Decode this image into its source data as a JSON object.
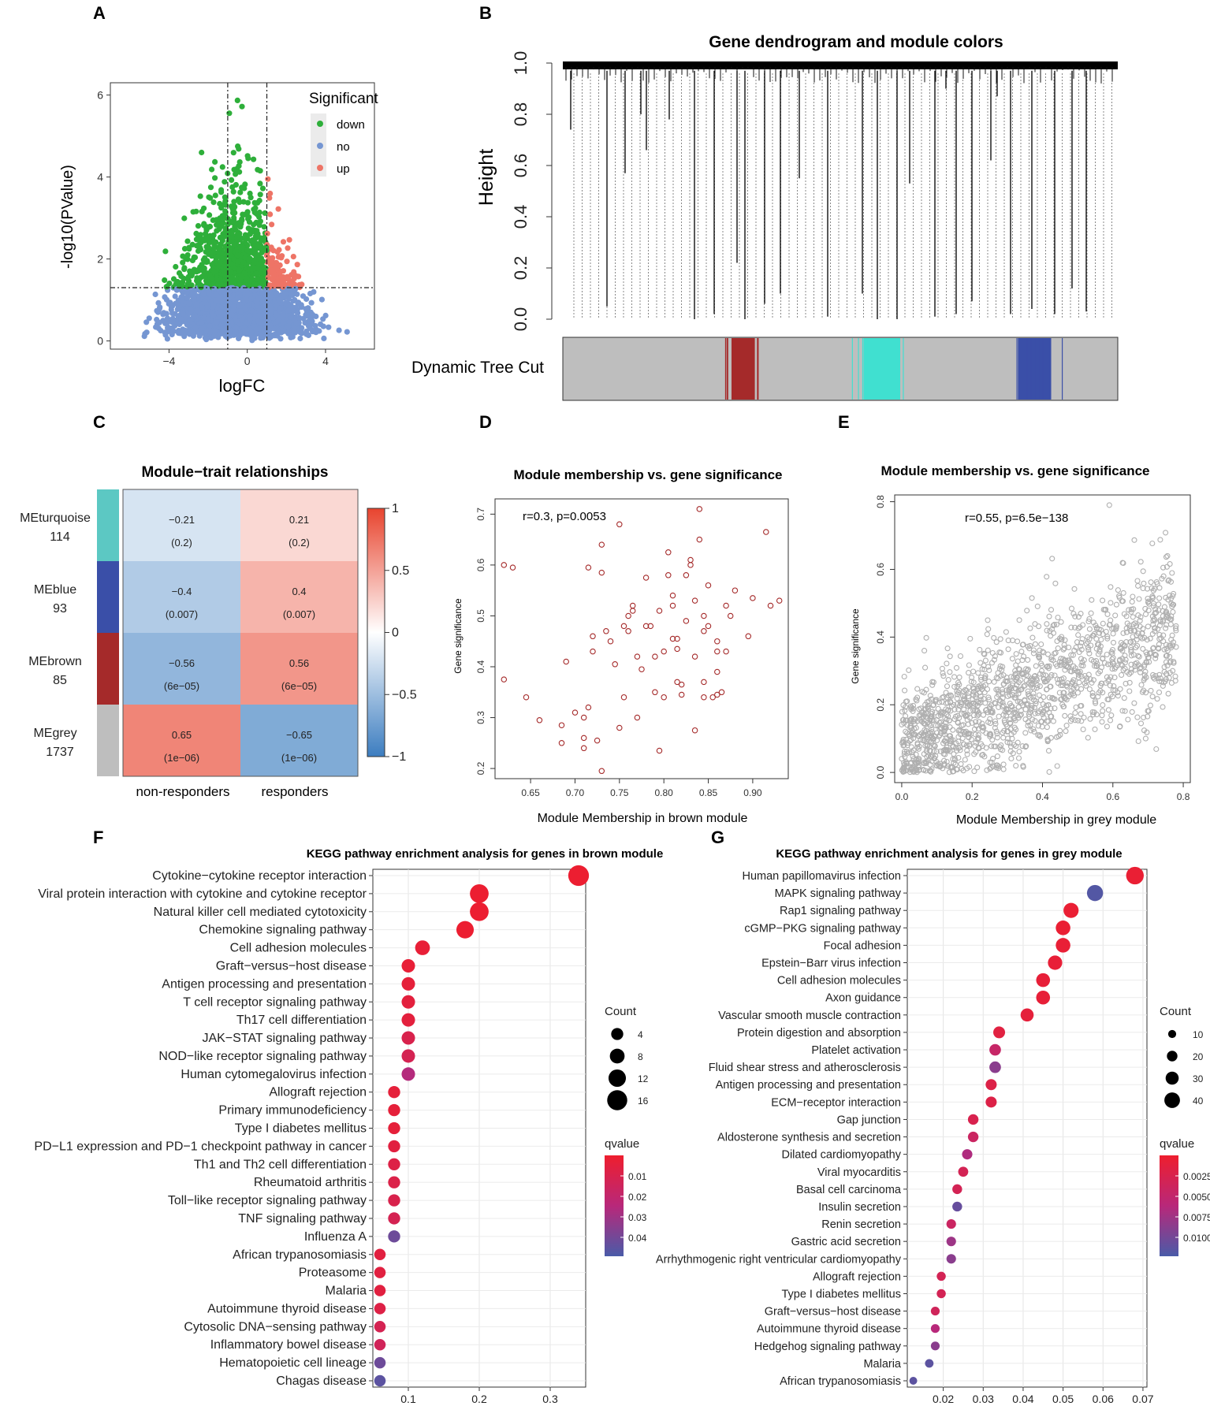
{
  "panel_labels": {
    "A": "A",
    "B": "B",
    "C": "C",
    "D": "D",
    "E": "E",
    "F": "F",
    "G": "G"
  },
  "colors": {
    "green": "#2EAF3A",
    "blue": "#7596D2",
    "red": "#EE7466",
    "grey": "#BEBEBE",
    "brown": "#A52A2A",
    "turquoise": "#40E0D0",
    "moduleblue": "#3A4FA8",
    "dark_red": "#E4232F",
    "dark_blue": "#4A5BA8"
  },
  "chart_data": [
    {
      "id": "A",
      "type": "scatter",
      "title": "",
      "xlabel": "logFC",
      "ylabel": "-log10(PValue)",
      "xlim": [
        -7,
        6.5
      ],
      "ylim": [
        -0.2,
        6.3
      ],
      "xticks": [
        -4,
        0,
        4
      ],
      "yticks": [
        0,
        2,
        4,
        6
      ],
      "legend_title": "Significant",
      "legend": [
        "down",
        "no",
        "up"
      ],
      "thresholds": {
        "logfc": [
          -1,
          1
        ],
        "pvalue_log": 1.3
      }
    },
    {
      "id": "B",
      "type": "dendrogram",
      "title": "Gene dendrogram and module colors",
      "ylabel": "Height",
      "yticks": [
        "0.0",
        "0.2",
        "0.4",
        "0.6",
        "0.8",
        "1.0"
      ],
      "ylim": [
        0,
        1
      ],
      "row_label": "Dynamic Tree Cut",
      "modules": [
        {
          "name": "brown",
          "start": 0.29,
          "end": 0.36
        },
        {
          "name": "turquoise",
          "start": 0.52,
          "end": 0.63
        },
        {
          "name": "blue",
          "start": 0.8,
          "end": 0.9
        }
      ]
    },
    {
      "id": "C",
      "type": "heatmap",
      "title": "Module−trait relationships",
      "columns": [
        "non-responders",
        "responders"
      ],
      "rows": [
        {
          "name": "MEturquoise",
          "count": "114",
          "color": "turquoise",
          "values": [
            -0.21,
            0.21
          ],
          "labels": [
            "−0.21",
            "0.21"
          ],
          "p": [
            "(0.2)",
            "(0.2)"
          ]
        },
        {
          "name": "MEblue",
          "count": "93",
          "color": "moduleblue",
          "values": [
            -0.4,
            0.4
          ],
          "labels": [
            "−0.4",
            "0.4"
          ],
          "p": [
            "(0.007)",
            "(0.007)"
          ]
        },
        {
          "name": "MEbrown",
          "count": "85",
          "color": "brown",
          "values": [
            -0.56,
            0.56
          ],
          "labels": [
            "−0.56",
            "0.56"
          ],
          "p": [
            "(6e−05)",
            "(6e−05)"
          ]
        },
        {
          "name": "MEgrey",
          "count": "1737",
          "color": "grey",
          "values": [
            0.65,
            -0.65
          ],
          "labels": [
            "0.65",
            "−0.65"
          ],
          "p": [
            "(1e−06)",
            "(1e−06)"
          ]
        }
      ],
      "colorbar_ticks": [
        "1",
        "0.5",
        "0",
        "−0.5",
        "−1"
      ]
    },
    {
      "id": "D",
      "type": "scatter",
      "title": "Module membership vs. gene significance",
      "xlabel": "Module Membership in brown module",
      "ylabel": "Gene significance",
      "annotation": "r=0.3, p=0.0053",
      "xlim": [
        0.61,
        0.94
      ],
      "ylim": [
        0.18,
        0.73
      ],
      "xticks": [
        "0.65",
        "0.70",
        "0.75",
        "0.80",
        "0.85",
        "0.90"
      ],
      "yticks": [
        "0.2",
        "0.3",
        "0.4",
        "0.5",
        "0.6",
        "0.7"
      ],
      "points": [
        [
          0.62,
          0.6
        ],
        [
          0.63,
          0.595
        ],
        [
          0.62,
          0.375
        ],
        [
          0.645,
          0.34
        ],
        [
          0.66,
          0.295
        ],
        [
          0.685,
          0.285
        ],
        [
          0.685,
          0.25
        ],
        [
          0.69,
          0.41
        ],
        [
          0.7,
          0.31
        ],
        [
          0.71,
          0.3
        ],
        [
          0.71,
          0.26
        ],
        [
          0.71,
          0.24
        ],
        [
          0.715,
          0.32
        ],
        [
          0.715,
          0.595
        ],
        [
          0.72,
          0.46
        ],
        [
          0.72,
          0.43
        ],
        [
          0.725,
          0.255
        ],
        [
          0.73,
          0.195
        ],
        [
          0.73,
          0.585
        ],
        [
          0.73,
          0.64
        ],
        [
          0.735,
          0.47
        ],
        [
          0.74,
          0.45
        ],
        [
          0.745,
          0.405
        ],
        [
          0.75,
          0.68
        ],
        [
          0.75,
          0.28
        ],
        [
          0.755,
          0.34
        ],
        [
          0.755,
          0.48
        ],
        [
          0.76,
          0.5
        ],
        [
          0.76,
          0.47
        ],
        [
          0.765,
          0.51
        ],
        [
          0.765,
          0.52
        ],
        [
          0.77,
          0.42
        ],
        [
          0.77,
          0.3
        ],
        [
          0.775,
          0.395
        ],
        [
          0.78,
          0.48
        ],
        [
          0.78,
          0.575
        ],
        [
          0.785,
          0.48
        ],
        [
          0.79,
          0.35
        ],
        [
          0.79,
          0.42
        ],
        [
          0.795,
          0.235
        ],
        [
          0.795,
          0.51
        ],
        [
          0.8,
          0.43
        ],
        [
          0.8,
          0.34
        ],
        [
          0.805,
          0.625
        ],
        [
          0.805,
          0.58
        ],
        [
          0.81,
          0.455
        ],
        [
          0.81,
          0.52
        ],
        [
          0.81,
          0.54
        ],
        [
          0.815,
          0.455
        ],
        [
          0.815,
          0.435
        ],
        [
          0.815,
          0.37
        ],
        [
          0.82,
          0.365
        ],
        [
          0.82,
          0.345
        ],
        [
          0.825,
          0.49
        ],
        [
          0.825,
          0.58
        ],
        [
          0.83,
          0.6
        ],
        [
          0.83,
          0.61
        ],
        [
          0.835,
          0.42
        ],
        [
          0.835,
          0.53
        ],
        [
          0.835,
          0.275
        ],
        [
          0.84,
          0.71
        ],
        [
          0.84,
          0.65
        ],
        [
          0.845,
          0.5
        ],
        [
          0.845,
          0.47
        ],
        [
          0.845,
          0.34
        ],
        [
          0.845,
          0.37
        ],
        [
          0.85,
          0.48
        ],
        [
          0.85,
          0.56
        ],
        [
          0.855,
          0.34
        ],
        [
          0.86,
          0.45
        ],
        [
          0.86,
          0.43
        ],
        [
          0.86,
          0.39
        ],
        [
          0.86,
          0.345
        ],
        [
          0.865,
          0.35
        ],
        [
          0.87,
          0.52
        ],
        [
          0.87,
          0.43
        ],
        [
          0.875,
          0.5
        ],
        [
          0.88,
          0.55
        ],
        [
          0.895,
          0.46
        ],
        [
          0.9,
          0.535
        ],
        [
          0.915,
          0.665
        ],
        [
          0.92,
          0.52
        ],
        [
          0.93,
          0.53
        ]
      ]
    },
    {
      "id": "E",
      "type": "scatter",
      "title": "Module membership vs. gene significance",
      "xlabel": "Module Membership in grey module",
      "ylabel": "Gene significance",
      "annotation": "r=0.55, p=6.5e−138",
      "xlim": [
        -0.02,
        0.82
      ],
      "ylim": [
        -0.03,
        0.82
      ],
      "xticks": [
        "0.0",
        "0.2",
        "0.4",
        "0.6",
        "0.8"
      ],
      "yticks": [
        "0.0",
        "0.2",
        "0.4",
        "0.6",
        "0.8"
      ],
      "trend": {
        "n": 1737,
        "slope": 0.42,
        "intercept": 0.08,
        "spread": 0.12
      }
    },
    {
      "id": "F",
      "type": "dotplot",
      "title": "KEGG pathway enrichment analysis for genes in brown module",
      "xlim": [
        0.05,
        0.35
      ],
      "xticks": [
        "0.1",
        "0.2",
        "0.3"
      ],
      "size_legend_title": "Count",
      "size_legend": [
        4,
        8,
        12,
        16
      ],
      "color_legend_title": "qvalue",
      "color_legend": [
        "0.01",
        "0.02",
        "0.03",
        "0.04"
      ],
      "qlim": [
        0.0,
        0.05
      ],
      "terms": [
        {
          "label": "Cytokine−cytokine receptor interaction",
          "x": 0.34,
          "count": 17,
          "q": 0.001
        },
        {
          "label": "Viral protein interaction with cytokine and cytokine receptor",
          "x": 0.2,
          "count": 14,
          "q": 0.001
        },
        {
          "label": "Natural killer cell mediated cytotoxicity",
          "x": 0.2,
          "count": 14,
          "q": 0.001
        },
        {
          "label": "Chemokine signaling pathway",
          "x": 0.18,
          "count": 12,
          "q": 0.001
        },
        {
          "label": "Cell adhesion molecules",
          "x": 0.12,
          "count": 8,
          "q": 0.003
        },
        {
          "label": "Graft−versus−host disease",
          "x": 0.1,
          "count": 6,
          "q": 0.003
        },
        {
          "label": "Antigen processing and presentation",
          "x": 0.1,
          "count": 6,
          "q": 0.004
        },
        {
          "label": "T cell receptor signaling pathway",
          "x": 0.1,
          "count": 6,
          "q": 0.005
        },
        {
          "label": "Th17 cell differentiation",
          "x": 0.1,
          "count": 6,
          "q": 0.005
        },
        {
          "label": "JAK−STAT signaling pathway",
          "x": 0.1,
          "count": 6,
          "q": 0.01
        },
        {
          "label": "NOD−like receptor signaling pathway",
          "x": 0.1,
          "count": 6,
          "q": 0.012
        },
        {
          "label": "Human cytomegalovirus infection",
          "x": 0.1,
          "count": 6,
          "q": 0.026
        },
        {
          "label": "Allograft rejection",
          "x": 0.08,
          "count": 4,
          "q": 0.004
        },
        {
          "label": "Primary immunodeficiency",
          "x": 0.08,
          "count": 4,
          "q": 0.004
        },
        {
          "label": "Type I diabetes mellitus",
          "x": 0.08,
          "count": 4,
          "q": 0.004
        },
        {
          "label": "PD−L1 expression and PD−1 checkpoint pathway in cancer",
          "x": 0.08,
          "count": 4,
          "q": 0.006
        },
        {
          "label": "Th1 and Th2 cell differentiation",
          "x": 0.08,
          "count": 4,
          "q": 0.008
        },
        {
          "label": "Rheumatoid arthritis",
          "x": 0.08,
          "count": 4,
          "q": 0.009
        },
        {
          "label": "Toll−like receptor signaling pathway",
          "x": 0.08,
          "count": 4,
          "q": 0.01
        },
        {
          "label": "TNF signaling pathway",
          "x": 0.08,
          "count": 4,
          "q": 0.012
        },
        {
          "label": "Influenza A",
          "x": 0.08,
          "count": 4,
          "q": 0.042
        },
        {
          "label": "African trypanosomiasis",
          "x": 0.06,
          "count": 3,
          "q": 0.006
        },
        {
          "label": "Proteasome",
          "x": 0.06,
          "count": 3,
          "q": 0.006
        },
        {
          "label": "Malaria",
          "x": 0.06,
          "count": 3,
          "q": 0.006
        },
        {
          "label": "Autoimmune thyroid disease",
          "x": 0.06,
          "count": 3,
          "q": 0.008
        },
        {
          "label": "Cytosolic DNA−sensing pathway",
          "x": 0.06,
          "count": 3,
          "q": 0.012
        },
        {
          "label": "Inflammatory bowel disease",
          "x": 0.06,
          "count": 3,
          "q": 0.014
        },
        {
          "label": "Hematopoietic cell lineage",
          "x": 0.06,
          "count": 3,
          "q": 0.042
        },
        {
          "label": "Chagas disease",
          "x": 0.06,
          "count": 3,
          "q": 0.046
        }
      ]
    },
    {
      "id": "G",
      "type": "dotplot",
      "title": "KEGG pathway enrichment analysis for genes in grey module",
      "xlim": [
        0.011,
        0.071
      ],
      "xticks": [
        "0.02",
        "0.03",
        "0.04",
        "0.05",
        "0.06",
        "0.07"
      ],
      "size_legend_title": "Count",
      "size_legend": [
        10,
        20,
        30,
        40
      ],
      "color_legend_title": "qvalue",
      "color_legend": [
        "0.0025",
        "0.0050",
        "0.0075",
        "0.0100"
      ],
      "qlim": [
        0.0,
        0.012
      ],
      "terms": [
        {
          "label": "Human papillomavirus infection",
          "x": 0.068,
          "count": 48,
          "q": 0.0005
        },
        {
          "label": "MAPK signaling pathway",
          "x": 0.058,
          "count": 42,
          "q": 0.0115
        },
        {
          "label": "Rap1 signaling pathway",
          "x": 0.052,
          "count": 38,
          "q": 0.0005
        },
        {
          "label": "cGMP−PKG signaling pathway",
          "x": 0.05,
          "count": 36,
          "q": 0.0005
        },
        {
          "label": "Focal adhesion",
          "x": 0.05,
          "count": 36,
          "q": 0.0006
        },
        {
          "label": "Epstein−Barr virus infection",
          "x": 0.048,
          "count": 35,
          "q": 0.0007
        },
        {
          "label": "Cell adhesion molecules",
          "x": 0.045,
          "count": 33,
          "q": 0.0008
        },
        {
          "label": "Axon guidance",
          "x": 0.045,
          "count": 33,
          "q": 0.0008
        },
        {
          "label": "Vascular smooth muscle contraction",
          "x": 0.041,
          "count": 30,
          "q": 0.001
        },
        {
          "label": "Protein digestion and absorption",
          "x": 0.034,
          "count": 25,
          "q": 0.0015
        },
        {
          "label": "Platelet activation",
          "x": 0.033,
          "count": 24,
          "q": 0.0045
        },
        {
          "label": "Fluid shear stress and atherosclerosis",
          "x": 0.033,
          "count": 24,
          "q": 0.0085
        },
        {
          "label": "Antigen processing and presentation",
          "x": 0.032,
          "count": 22,
          "q": 0.002
        },
        {
          "label": "ECM−receptor interaction",
          "x": 0.032,
          "count": 22,
          "q": 0.002
        },
        {
          "label": "Gap junction",
          "x": 0.0275,
          "count": 20,
          "q": 0.0025
        },
        {
          "label": "Aldosterone synthesis and secretion",
          "x": 0.0275,
          "count": 20,
          "q": 0.004
        },
        {
          "label": "Dilated cardiomyopathy",
          "x": 0.026,
          "count": 19,
          "q": 0.0065
        },
        {
          "label": "Viral myocarditis",
          "x": 0.025,
          "count": 18,
          "q": 0.003
        },
        {
          "label": "Basal cell carcinoma",
          "x": 0.0235,
          "count": 17,
          "q": 0.003
        },
        {
          "label": "Insulin secretion",
          "x": 0.0235,
          "count": 17,
          "q": 0.0105
        },
        {
          "label": "Renin secretion",
          "x": 0.022,
          "count": 16,
          "q": 0.004
        },
        {
          "label": "Gastric acid secretion",
          "x": 0.022,
          "count": 16,
          "q": 0.0075
        },
        {
          "label": "Arrhythmogenic right ventricular cardiomyopathy",
          "x": 0.022,
          "count": 16,
          "q": 0.0085
        },
        {
          "label": "Allograft rejection",
          "x": 0.0195,
          "count": 14,
          "q": 0.003
        },
        {
          "label": "Type I diabetes mellitus",
          "x": 0.0195,
          "count": 14,
          "q": 0.003
        },
        {
          "label": "Graft−versus−host disease",
          "x": 0.018,
          "count": 13,
          "q": 0.0035
        },
        {
          "label": "Autoimmune thyroid disease",
          "x": 0.018,
          "count": 13,
          "q": 0.006
        },
        {
          "label": "Hedgehog signaling pathway",
          "x": 0.018,
          "count": 13,
          "q": 0.0085
        },
        {
          "label": "Malaria",
          "x": 0.0165,
          "count": 12,
          "q": 0.011
        },
        {
          "label": "African trypanosomiasis",
          "x": 0.0125,
          "count": 9,
          "q": 0.011
        }
      ]
    }
  ]
}
